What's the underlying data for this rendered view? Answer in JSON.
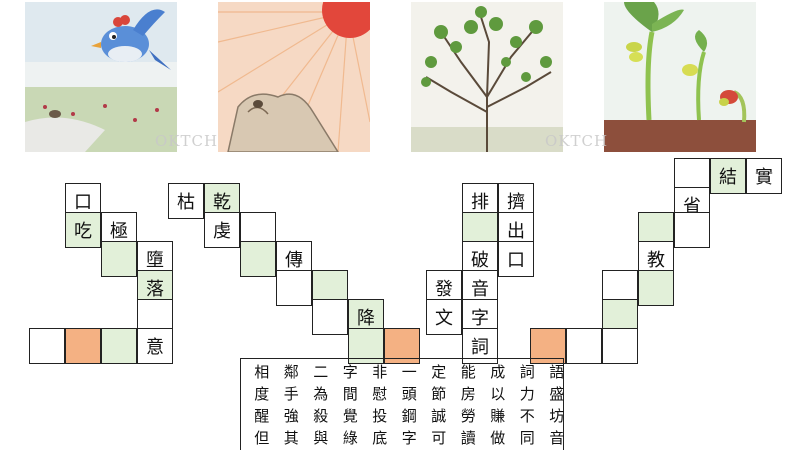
{
  "pictures": [
    {
      "alt": "bird flying over meadow",
      "watermark": ""
    },
    {
      "alt": "sun over rocks",
      "watermark": ""
    },
    {
      "alt": "thorny tree",
      "watermark": ""
    },
    {
      "alt": "sprouting seeds",
      "watermark": ""
    }
  ],
  "watermarks": [
    "OKTCH",
    "OKTCH"
  ],
  "puzzle1": {
    "c1": "口",
    "c2": "吃",
    "c3": "極",
    "c4": "墮",
    "c5": "落",
    "c6": "意"
  },
  "puzzle2": {
    "c1": "枯",
    "c2": "乾",
    "c3": "虔",
    "c4": "傳",
    "c5": "降"
  },
  "puzzle3": {
    "c1": "排",
    "c2": "擠",
    "c3": "出",
    "c4": "破",
    "c5": "口",
    "c6": "發",
    "c7": "音",
    "c8": "文",
    "c9": "字",
    "c10": "詞"
  },
  "puzzle4": {
    "c1": "結",
    "c2": "實",
    "c3": "省",
    "c4": "教"
  },
  "word_bank": [
    [
      "相",
      "鄰",
      "二",
      "字",
      "非",
      "一",
      "定",
      "能",
      "成",
      "詞",
      "語"
    ],
    [
      "度",
      "手",
      "為",
      "間",
      "慰",
      "頭",
      "節",
      "房",
      "以",
      "力",
      "盛"
    ],
    [
      "醒",
      "強",
      "殺",
      "覺",
      "投",
      "鋼",
      "誠",
      "勞",
      "賺",
      "不",
      "坊"
    ],
    [
      "但",
      "其",
      "與",
      "綠",
      "底",
      "字",
      "可",
      "讀",
      "做",
      "同",
      "音"
    ]
  ],
  "colors": {
    "highlight": "#e2f0d9",
    "answer": "#f4b183",
    "border": "#222222"
  }
}
